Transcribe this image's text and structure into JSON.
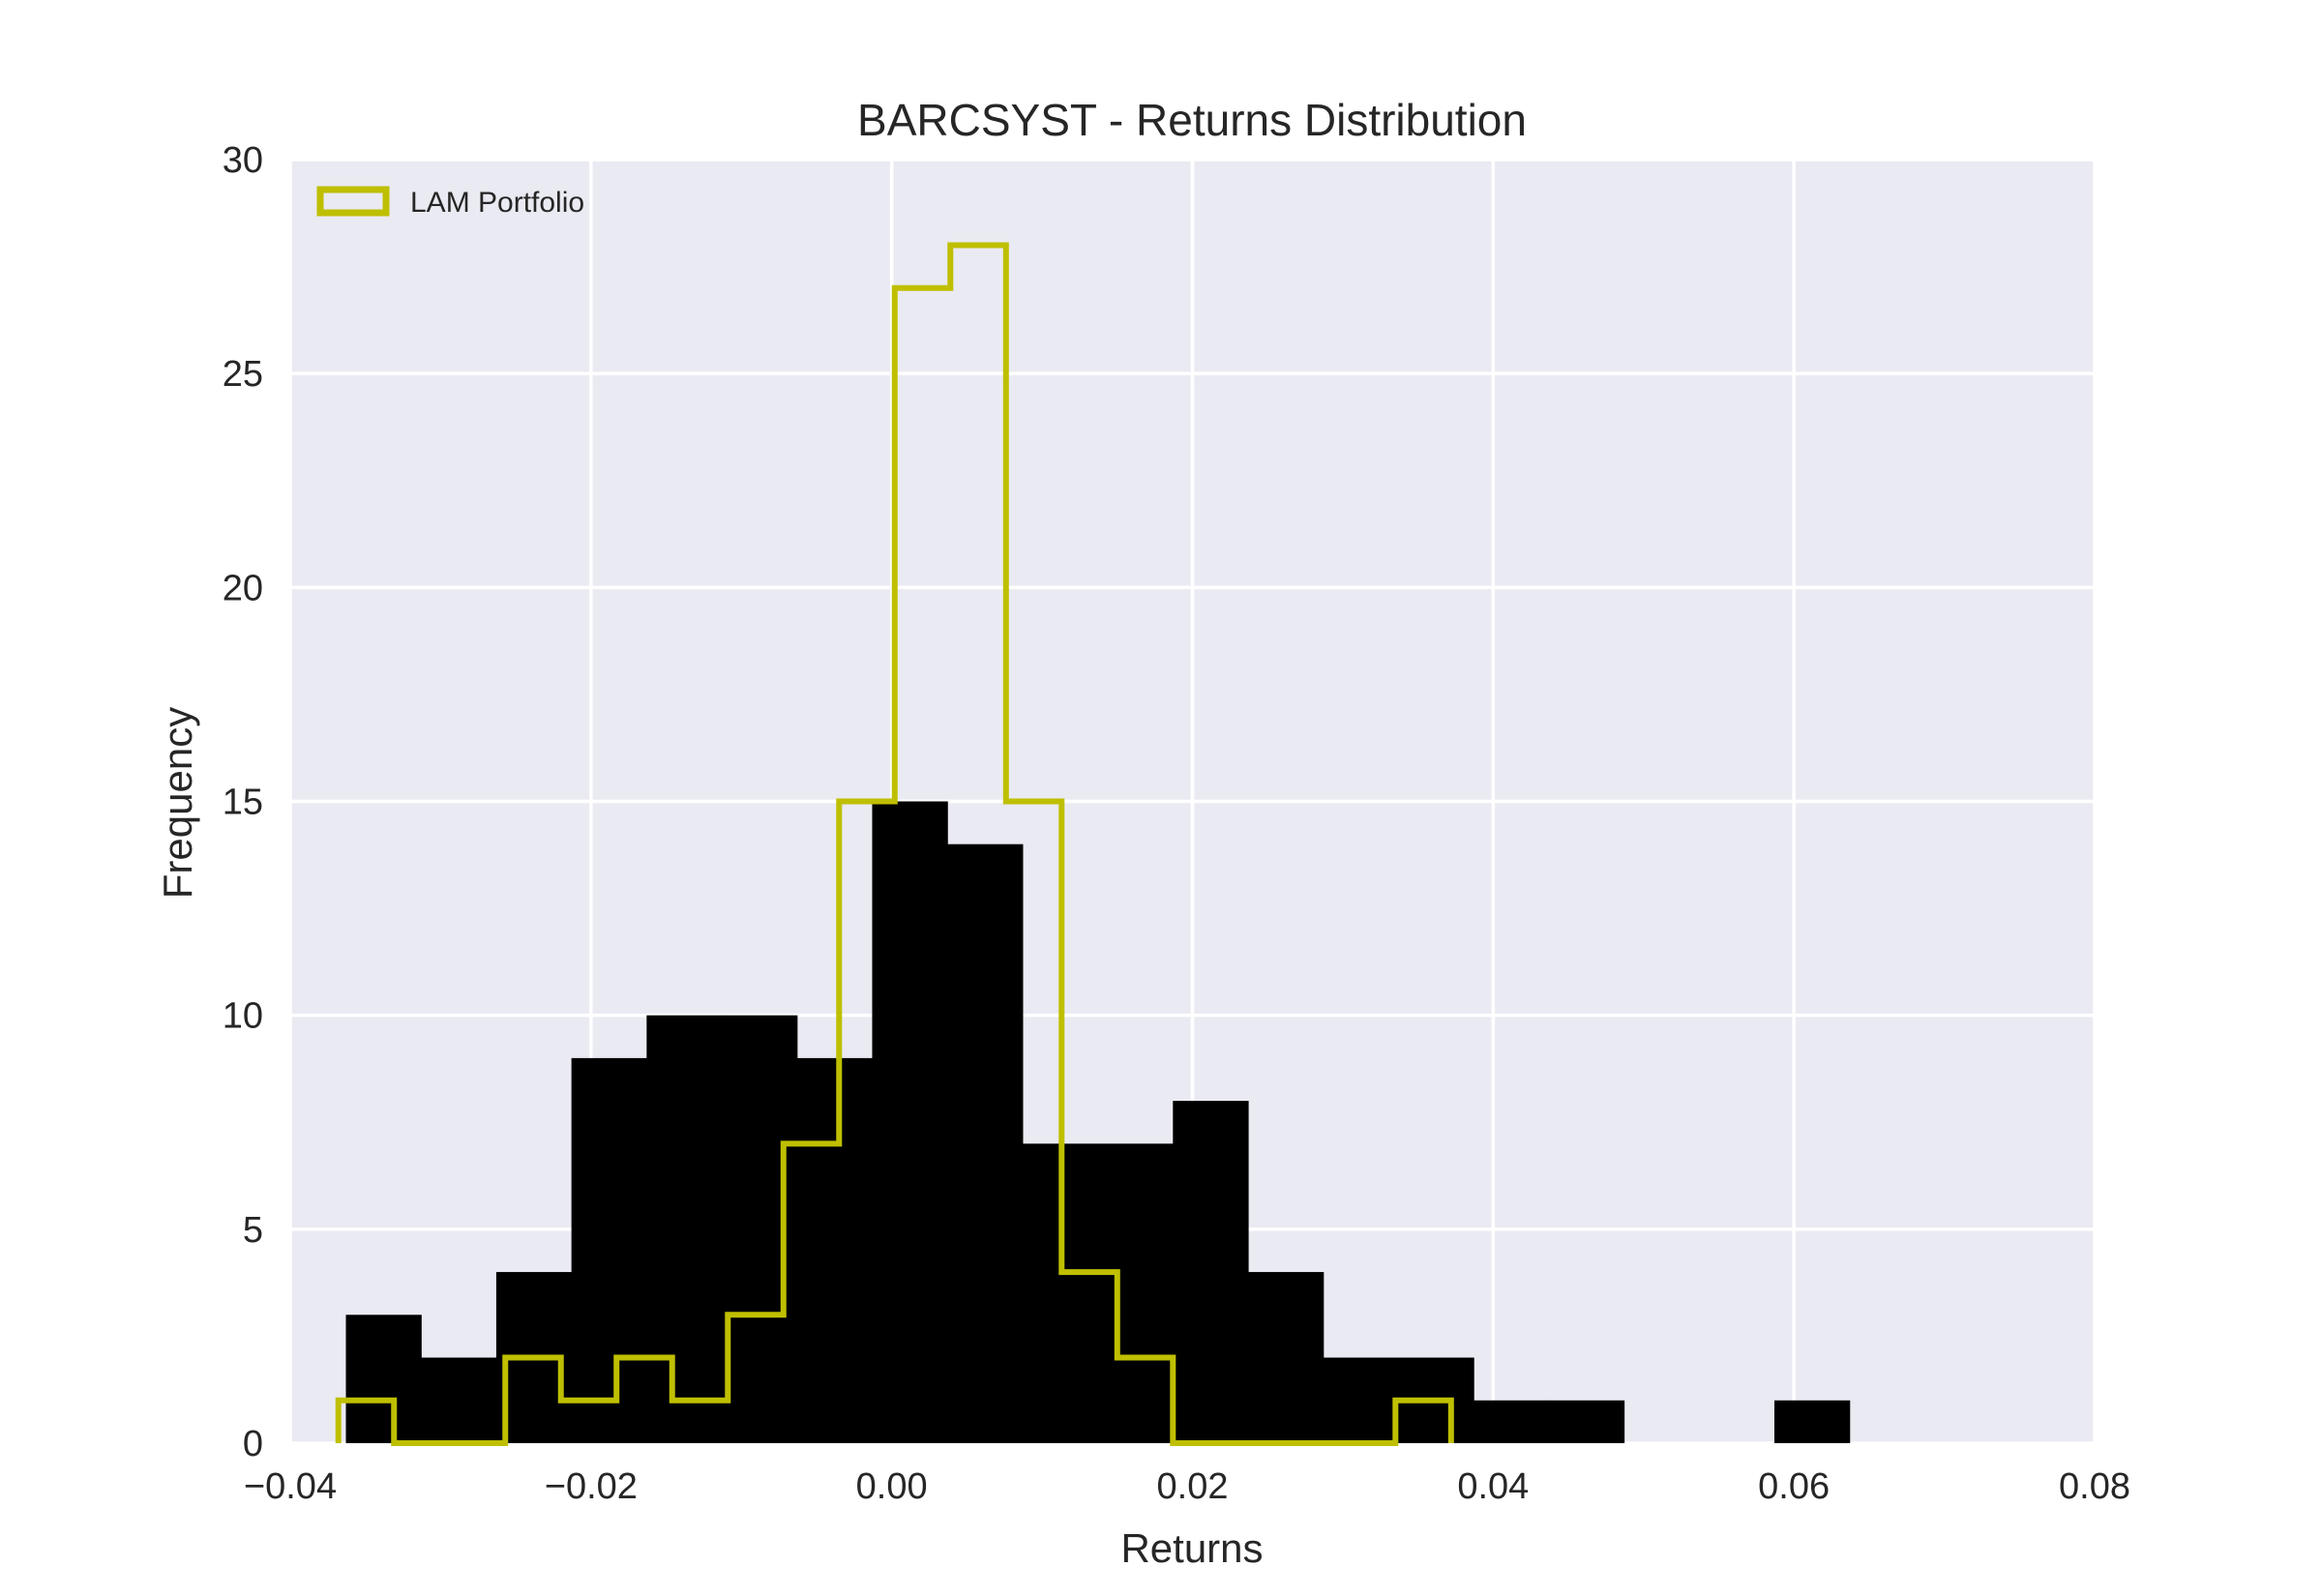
{
  "chart_data": {
    "type": "histogram",
    "title": "BARCSYST - Returns Distribution",
    "xlabel": "Returns",
    "ylabel": "Frequency",
    "xlim": [
      -0.04,
      0.08
    ],
    "ylim": [
      0,
      30
    ],
    "x_ticks": [
      {
        "value": -0.04,
        "label": "−0.04"
      },
      {
        "value": -0.02,
        "label": "−0.02"
      },
      {
        "value": 0.0,
        "label": "0.00"
      },
      {
        "value": 0.02,
        "label": "0.02"
      },
      {
        "value": 0.04,
        "label": "0.04"
      },
      {
        "value": 0.06,
        "label": "0.06"
      },
      {
        "value": 0.08,
        "label": "0.08"
      }
    ],
    "y_ticks": [
      {
        "value": 0,
        "label": "0"
      },
      {
        "value": 5,
        "label": "5"
      },
      {
        "value": 10,
        "label": "10"
      },
      {
        "value": 15,
        "label": "15"
      },
      {
        "value": 20,
        "label": "20"
      },
      {
        "value": 25,
        "label": "25"
      },
      {
        "value": 30,
        "label": "30"
      }
    ],
    "grid": true,
    "legend_position": "top-left",
    "series": [
      {
        "style": "filled",
        "color": "#000000",
        "bin_edges": [
          -0.0363,
          -0.0313,
          -0.0263,
          -0.0213,
          -0.0163,
          -0.0113,
          -0.0063,
          -0.0013,
          0.0037,
          0.0087,
          0.0137,
          0.0187,
          0.0237,
          0.0287,
          0.0337,
          0.0387,
          0.0437,
          0.0487,
          0.0537,
          0.0587,
          0.0637
        ],
        "counts": [
          3,
          2,
          4,
          9,
          10,
          10,
          9,
          15,
          14,
          7,
          7,
          8,
          4,
          2,
          2,
          1,
          1,
          0,
          0,
          1
        ]
      },
      {
        "name": "LAM Portfolio",
        "style": "step",
        "color": "#bfbf00",
        "bin_edges": [
          -0.0368,
          -0.0331,
          -0.0294,
          -0.0257,
          -0.022,
          -0.0183,
          -0.0146,
          -0.0109,
          -0.0072,
          -0.0035,
          0.0002,
          0.0039,
          0.0076,
          0.0113,
          0.015,
          0.0187,
          0.0224,
          0.0261,
          0.0298,
          0.0335,
          0.0372
        ],
        "counts": [
          1,
          0,
          0,
          2,
          1,
          2,
          1,
          3,
          7,
          15,
          27,
          28,
          15,
          4,
          2,
          0,
          0,
          0,
          0,
          1
        ]
      }
    ]
  }
}
